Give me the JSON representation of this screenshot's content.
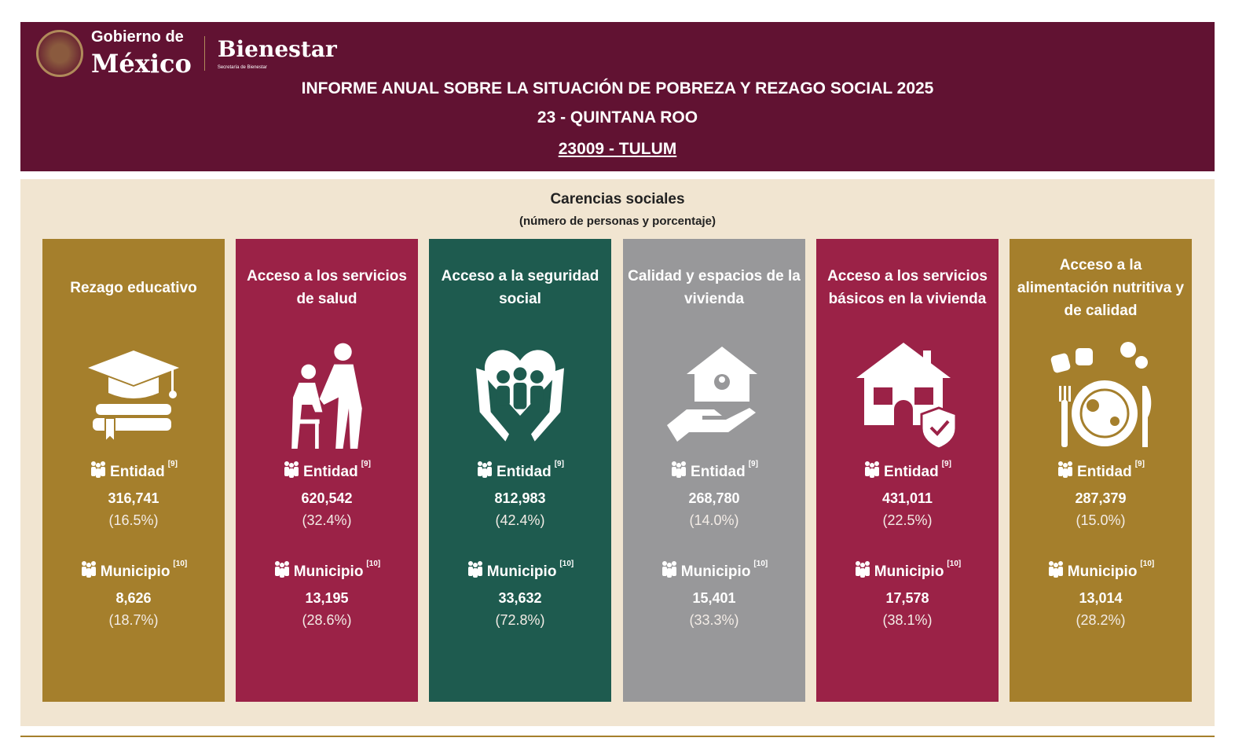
{
  "header": {
    "logo_line1": "Gobierno de",
    "logo_line2": "México",
    "logo_bienestar": "Bienestar",
    "logo_sub": "Secretaría de Bienestar",
    "title": "INFORME ANUAL SOBRE LA SITUACIÓN DE POBREZA Y REZAGO SOCIAL 2025",
    "state": "23 - QUINTANA ROO",
    "municipality": "23009 - TULUM"
  },
  "section": {
    "title": "Carencias sociales",
    "subtitle": "(número de personas y porcentaje)"
  },
  "labels": {
    "entidad": "Entidad",
    "entidad_ref": "[9]",
    "municipio": "Municipio",
    "municipio_ref": "[10]"
  },
  "cards": [
    {
      "title": "Rezago educativo",
      "icon": "graduation-cap-books",
      "color": "#a57f2c",
      "entidad": "316,741",
      "entidad_pct": "(16.5%)",
      "municipio": "8,626",
      "municipio_pct": "(18.7%)"
    },
    {
      "title": "Acceso a los servicios de salud",
      "icon": "doctor-patient",
      "color": "#9b2247",
      "entidad": "620,542",
      "entidad_pct": "(32.4%)",
      "municipio": "13,195",
      "municipio_pct": "(28.6%)"
    },
    {
      "title": "Acceso a la seguridad social",
      "icon": "hands-family",
      "color": "#1e5b4f",
      "entidad": "812,983",
      "entidad_pct": "(42.4%)",
      "municipio": "33,632",
      "municipio_pct": "(72.8%)"
    },
    {
      "title": "Calidad y espacios de la vivienda",
      "icon": "hand-house",
      "color": "#98989a",
      "entidad": "268,780",
      "entidad_pct": "(14.0%)",
      "municipio": "15,401",
      "municipio_pct": "(33.3%)"
    },
    {
      "title": "Acceso a los servicios básicos en la vivienda",
      "icon": "house-shield",
      "color": "#9b2247",
      "entidad": "431,011",
      "entidad_pct": "(22.5%)",
      "municipio": "17,578",
      "municipio_pct": "(38.1%)"
    },
    {
      "title": "Acceso a la alimentación nutritiva y de calidad",
      "icon": "plate-fork-knife",
      "color": "#a57f2c",
      "entidad": "287,379",
      "entidad_pct": "(15.0%)",
      "municipio": "13,014",
      "municipio_pct": "(28.2%)"
    }
  ]
}
